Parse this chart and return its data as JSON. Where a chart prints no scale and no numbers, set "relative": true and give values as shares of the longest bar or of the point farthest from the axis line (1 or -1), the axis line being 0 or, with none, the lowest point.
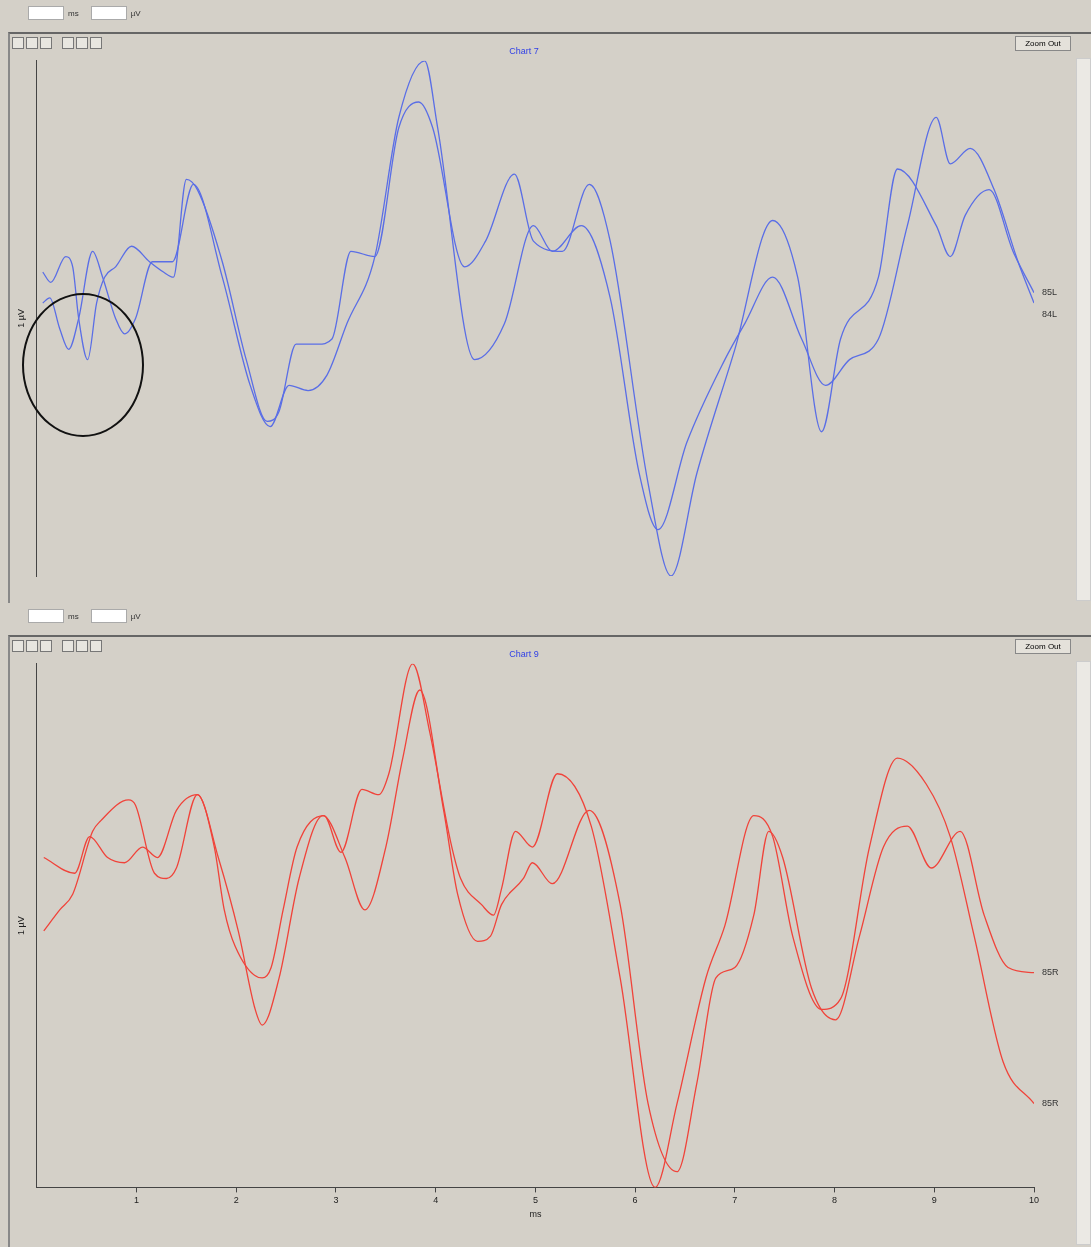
{
  "chart_data": [
    {
      "type": "line",
      "title": "Chart 7",
      "ylabel": "1 µV",
      "relative": true,
      "xlim": [
        0,
        10
      ],
      "tick_labels": false,
      "legend": false,
      "grid": false,
      "marker": "none",
      "line_style": "solid",
      "annotations": [
        "ms",
        "µV",
        "Zoom Out"
      ],
      "series": [
        {
          "name": "85L",
          "color": "#5a6ee6",
          "x": [
            0.06,
            0.14,
            0.29,
            0.36,
            0.42,
            0.51,
            0.6,
            0.68,
            0.79,
            0.95,
            1.13,
            1.27,
            1.37,
            1.5,
            1.61,
            1.86,
            2.1,
            2.31,
            2.43,
            2.6,
            2.82,
            2.96,
            3.15,
            3.39,
            3.63,
            3.83,
            3.97,
            4.29,
            4.5,
            4.79,
            4.98,
            5.27,
            5.54,
            5.75,
            6.13,
            6.36,
            6.62,
            7.0,
            7.38,
            7.63,
            7.87,
            8.06,
            8.44,
            8.63,
            9.02,
            9.16,
            9.31,
            9.55,
            9.79,
            10.0
          ],
          "values": [
            0.59,
            0.57,
            0.62,
            0.6,
            0.5,
            0.42,
            0.53,
            0.58,
            0.6,
            0.64,
            0.61,
            0.59,
            0.58,
            0.77,
            0.75,
            0.61,
            0.42,
            0.3,
            0.32,
            0.45,
            0.45,
            0.46,
            0.63,
            0.62,
            0.87,
            0.92,
            0.87,
            0.6,
            0.65,
            0.78,
            0.65,
            0.63,
            0.76,
            0.65,
            0.18,
            0,
            0.2,
            0.44,
            0.69,
            0.58,
            0.28,
            0.46,
            0.58,
            0.79,
            0.68,
            0.62,
            0.7,
            0.75,
            0.63,
            0.55
          ]
        },
        {
          "name": "84L",
          "color": "#5a6ee6",
          "x": [
            0.06,
            0.13,
            0.23,
            0.32,
            0.42,
            0.56,
            0.66,
            0.79,
            0.88,
            0.99,
            1.16,
            1.27,
            1.36,
            1.57,
            1.86,
            2.14,
            2.34,
            2.53,
            2.72,
            2.91,
            3.11,
            3.39,
            3.63,
            3.89,
            4.02,
            4.39,
            4.69,
            4.98,
            5.17,
            5.46,
            5.75,
            6.04,
            6.23,
            6.52,
            6.9,
            7.1,
            7.38,
            7.67,
            7.91,
            8.15,
            8.44,
            8.73,
            9.02,
            9.16,
            9.36,
            9.6,
            9.84,
            10.0
          ],
          "values": [
            0.53,
            0.54,
            0.48,
            0.44,
            0.5,
            0.63,
            0.58,
            0.5,
            0.47,
            0.5,
            0.61,
            0.61,
            0.61,
            0.76,
            0.58,
            0.37,
            0.29,
            0.37,
            0.36,
            0.39,
            0.49,
            0.62,
            0.89,
            1,
            0.87,
            0.42,
            0.49,
            0.68,
            0.63,
            0.68,
            0.54,
            0.2,
            0.09,
            0.26,
            0.42,
            0.49,
            0.58,
            0.46,
            0.37,
            0.42,
            0.46,
            0.68,
            0.89,
            0.8,
            0.83,
            0.75,
            0.61,
            0.53
          ]
        }
      ]
    },
    {
      "type": "line",
      "title": "Chart 9",
      "ylabel": "1 µV",
      "xlabel": "ms",
      "relative": true,
      "xlim": [
        0,
        10
      ],
      "xticks": [
        1,
        2,
        3,
        4,
        5,
        6,
        7,
        8,
        9,
        10
      ],
      "tick_labels": "x",
      "legend": false,
      "grid": false,
      "marker": "none",
      "line_style": "solid",
      "annotations": [
        "ms",
        "µV",
        "Zoom Out"
      ],
      "series": [
        {
          "name": "85R",
          "color": "#f0433a",
          "x": [
            0.07,
            0.38,
            0.53,
            0.71,
            0.88,
            1.06,
            1.21,
            1.4,
            1.61,
            1.78,
            1.88,
            1.99,
            2.26,
            2.35,
            2.47,
            2.61,
            2.88,
            3.05,
            3.26,
            3.43,
            3.53,
            3.77,
            3.94,
            4.15,
            4.25,
            4.46,
            4.58,
            4.66,
            4.8,
            4.97,
            5.22,
            5.56,
            5.85,
            6.2,
            6.42,
            6.71,
            6.9,
            7.19,
            7.38,
            7.58,
            7.87,
            8.06,
            8.35,
            8.63,
            8.92,
            9.16,
            9.4,
            9.69,
            10.0
          ],
          "values": [
            0.63,
            0.6,
            0.67,
            0.63,
            0.62,
            0.65,
            0.63,
            0.72,
            0.75,
            0.65,
            0.53,
            0.46,
            0.4,
            0.42,
            0.53,
            0.65,
            0.71,
            0.64,
            0.76,
            0.75,
            0.79,
            1,
            0.87,
            0.66,
            0.59,
            0.54,
            0.52,
            0.57,
            0.68,
            0.65,
            0.79,
            0.69,
            0.4,
            0,
            0.16,
            0.4,
            0.5,
            0.71,
            0.67,
            0.48,
            0.34,
            0.36,
            0.65,
            0.82,
            0.77,
            0.67,
            0.48,
            0.24,
            0.16
          ]
        },
        {
          "name": "85R",
          "color": "#f0433a",
          "x": [
            0.07,
            0.23,
            0.36,
            0.56,
            0.64,
            0.92,
            0.99,
            1.18,
            1.3,
            1.4,
            1.61,
            1.82,
            2.02,
            2.19,
            2.26,
            2.43,
            2.63,
            2.87,
            3.09,
            3.29,
            3.5,
            3.67,
            3.84,
            4.08,
            4.22,
            4.42,
            4.55,
            4.66,
            4.88,
            4.97,
            5.17,
            5.54,
            5.85,
            6.13,
            6.42,
            6.62,
            6.81,
            7.0,
            7.19,
            7.34,
            7.48,
            7.77,
            8.01,
            8.25,
            8.49,
            8.73,
            8.97,
            9.26,
            9.5,
            9.74,
            10.0
          ],
          "values": [
            0.49,
            0.53,
            0.56,
            0.68,
            0.7,
            0.74,
            0.73,
            0.6,
            0.59,
            0.61,
            0.75,
            0.63,
            0.49,
            0.34,
            0.31,
            0.4,
            0.59,
            0.71,
            0.63,
            0.53,
            0.65,
            0.82,
            0.95,
            0.72,
            0.56,
            0.47,
            0.48,
            0.54,
            0.59,
            0.62,
            0.58,
            0.72,
            0.54,
            0.16,
            0.03,
            0.2,
            0.4,
            0.42,
            0.52,
            0.68,
            0.63,
            0.38,
            0.32,
            0.48,
            0.65,
            0.69,
            0.61,
            0.68,
            0.52,
            0.42,
            0.41
          ]
        }
      ]
    }
  ]
}
